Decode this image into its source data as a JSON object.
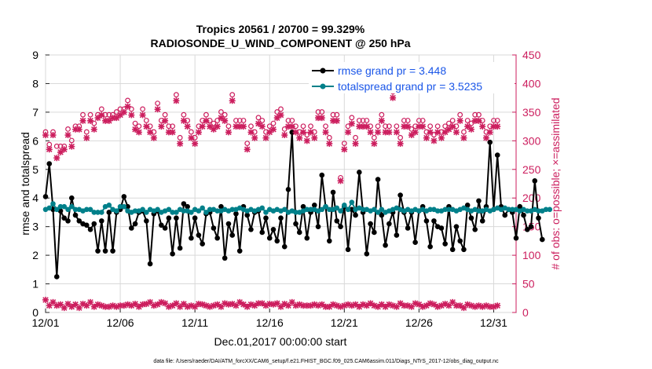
{
  "chart_data": {
    "type": "line",
    "title_line1": "Tropics 20561 / 20700 = 99.329%",
    "title_line2": "RADIOSONDE_U_WIND_COMPONENT @ 250 hPa",
    "xlabel": "Dec.01,2017 00:00:00 start",
    "ylabel_left": "rmse and totalspread",
    "ylabel_right": "# of obs: o=possible; ×=assimilated",
    "xlim": [
      0,
      31.5
    ],
    "ylim_left": [
      0,
      9
    ],
    "ylim_right": [
      0,
      450
    ],
    "x_ticks": [
      0,
      5,
      10,
      15,
      20,
      25,
      30
    ],
    "x_tick_labels": [
      "12/01",
      "12/06",
      "12/11",
      "12/16",
      "12/21",
      "12/26",
      "12/31"
    ],
    "y_ticks_left": [
      0,
      1,
      2,
      3,
      4,
      5,
      6,
      7,
      8,
      9
    ],
    "y_ticks_right": [
      0,
      50,
      100,
      150,
      200,
      250,
      300,
      350,
      400,
      450
    ],
    "legend": [
      {
        "label": "rmse grand pr = 3.448",
        "color": "#000000"
      },
      {
        "label": "totalspread grand pr = 3.5235",
        "color": "#00808a"
      }
    ],
    "series": [
      {
        "name": "rmse",
        "color": "#000000",
        "step": 0.25,
        "start": 0,
        "values": [
          4.05,
          5.2,
          3.6,
          1.25,
          3.55,
          3.3,
          3.2,
          4.0,
          3.4,
          3.2,
          3.1,
          3.05,
          2.9,
          3.1,
          2.15,
          3.2,
          2.15,
          3.5,
          2.15,
          3.5,
          3.6,
          4.05,
          3.7,
          2.95,
          3.1,
          3.5,
          3.55,
          3.2,
          1.7,
          3.45,
          3.55,
          3.05,
          2.95,
          3.3,
          2.05,
          3.3,
          2.25,
          3.8,
          3.7,
          2.6,
          3.3,
          2.7,
          2.4,
          3.45,
          3.5,
          2.95,
          2.6,
          3.7,
          1.9,
          3.1,
          2.7,
          3.45,
          2.15,
          3.7,
          3.4,
          2.9,
          3.5,
          3.55,
          2.8,
          3.3,
          2.6,
          2.9,
          2.5,
          3.3,
          2.3,
          4.3,
          6.3,
          3.1,
          2.8,
          3.7,
          2.6,
          3.5,
          3.75,
          3.0,
          4.8,
          3.7,
          2.5,
          4.2,
          3.2,
          3.0,
          3.7,
          2.2,
          3.6,
          3.4,
          4.9,
          3.5,
          2.05,
          3.1,
          2.8,
          4.65,
          3.4,
          2.35,
          3.1,
          3.5,
          2.7,
          4.1,
          3.5,
          2.95,
          3.5,
          2.45,
          3.55,
          3.7,
          3.2,
          2.3,
          3.2,
          3.0,
          2.95,
          2.4,
          3.7,
          2.2,
          3.0,
          2.5,
          2.2,
          3.75,
          3.3,
          2.9,
          3.9,
          3.2,
          3.7,
          5.95,
          3.6,
          5.5,
          3.7,
          3.4,
          3.6,
          3.5,
          2.6,
          3.7,
          3.4,
          2.9,
          3.0,
          4.6,
          3.3,
          2.55
        ]
      },
      {
        "name": "totalspread",
        "color": "#00808a",
        "step": 0.25,
        "start": 0,
        "values": [
          3.6,
          3.65,
          3.8,
          3.6,
          3.7,
          3.7,
          3.6,
          3.7,
          3.6,
          3.6,
          3.55,
          3.6,
          3.6,
          3.5,
          3.5,
          3.5,
          3.7,
          3.75,
          3.6,
          3.55,
          3.7,
          3.7,
          3.55,
          3.5,
          3.55,
          3.55,
          3.6,
          3.5,
          3.6,
          3.55,
          3.6,
          3.5,
          3.55,
          3.6,
          3.5,
          3.5,
          3.6,
          3.55,
          3.55,
          3.5,
          3.6,
          3.55,
          3.65,
          3.5,
          3.6,
          3.6,
          3.55,
          3.55,
          3.6,
          3.55,
          3.6,
          3.6,
          3.65,
          3.6,
          3.55,
          3.6,
          3.55,
          3.6,
          3.65,
          3.5,
          3.6,
          3.55,
          3.6,
          3.55,
          3.6,
          3.5,
          3.55,
          3.5,
          3.5,
          3.55,
          3.6,
          3.6,
          3.6,
          3.55,
          3.6,
          3.7,
          3.6,
          3.6,
          3.65,
          3.55,
          3.75,
          3.6,
          3.85,
          3.6,
          3.65,
          3.6,
          3.6,
          3.55,
          3.6,
          3.5,
          3.6,
          3.5,
          3.55,
          3.6,
          3.65,
          3.6,
          3.55,
          3.6,
          3.55,
          3.6,
          3.55,
          3.6,
          3.55,
          3.6,
          3.6,
          3.55,
          3.55,
          3.6,
          3.6,
          3.6,
          3.55,
          3.6,
          3.65,
          3.6,
          3.55,
          3.6,
          3.55,
          3.55,
          3.6,
          3.55,
          3.6,
          3.65,
          3.6,
          3.65,
          3.6,
          3.6,
          3.6,
          3.55,
          3.6,
          3.55,
          3.55,
          3.6,
          3.55,
          3.55,
          3.6,
          3.6
        ]
      },
      {
        "name": "obs_possible",
        "color": "#cc1e5e",
        "axis": "right",
        "marker": "circle",
        "step": 0.25,
        "start": 0,
        "values": [
          310,
          288,
          310,
          285,
          285,
          285,
          315,
          295,
          320,
          320,
          340,
          310,
          340,
          325,
          340,
          350,
          340,
          340,
          340,
          345,
          350,
          350,
          365,
          350,
          325,
          320,
          350,
          330,
          320,
          310,
          360,
          330,
          340,
          320,
          320,
          375,
          300,
          340,
          330,
          310,
          300,
          320,
          330,
          340,
          330,
          325,
          330,
          345,
          340,
          320,
          375,
          330,
          330,
          330,
          290,
          320,
          310,
          335,
          330,
          310,
          320,
          325,
          345,
          350,
          315,
          330,
          330,
          320,
          310,
          320,
          305,
          320,
          310,
          345,
          345,
          320,
          300,
          340,
          340,
          230,
          290,
          320,
          335,
          300,
          330,
          330,
          330,
          320,
          300,
          320,
          340,
          320,
          320,
          380,
          320,
          300,
          330,
          330,
          315,
          320,
          330,
          330,
          310,
          320,
          305,
          320,
          310,
          320,
          325,
          330,
          320,
          340,
          310,
          330,
          325,
          340,
          340,
          330,
          310,
          320,
          330,
          330
        ]
      },
      {
        "name": "obs_assimilated",
        "color": "#cc1e5e",
        "axis": "right",
        "marker": "cross",
        "step": 0.25,
        "start": 0,
        "values": [
          310,
          285,
          310,
          270,
          280,
          285,
          310,
          290,
          320,
          320,
          335,
          305,
          335,
          320,
          340,
          345,
          335,
          335,
          340,
          340,
          345,
          350,
          360,
          345,
          320,
          315,
          345,
          325,
          315,
          305,
          355,
          325,
          335,
          315,
          315,
          370,
          295,
          335,
          325,
          305,
          295,
          315,
          325,
          335,
          325,
          320,
          325,
          340,
          335,
          315,
          370,
          325,
          325,
          325,
          285,
          315,
          305,
          330,
          325,
          305,
          315,
          320,
          340,
          345,
          310,
          325,
          325,
          315,
          305,
          315,
          300,
          315,
          305,
          340,
          340,
          315,
          295,
          335,
          335,
          230,
          285,
          315,
          330,
          295,
          325,
          325,
          325,
          315,
          295,
          315,
          335,
          315,
          315,
          375,
          315,
          295,
          325,
          325,
          310,
          315,
          325,
          325,
          305,
          315,
          300,
          315,
          305,
          315,
          320,
          325,
          315,
          335,
          305,
          325,
          320,
          335,
          335,
          325,
          305,
          315,
          325,
          325
        ]
      },
      {
        "name": "obs_rejected",
        "color": "#cc1e5e",
        "axis": "right",
        "marker": "cross",
        "step": 0.25,
        "start": 0,
        "values": [
          22,
          12,
          18,
          12,
          14,
          8,
          15,
          10,
          14,
          8,
          15,
          12,
          18,
          10,
          14,
          12,
          10,
          10,
          12,
          10,
          12,
          12,
          14,
          12,
          15,
          10,
          14,
          15,
          18,
          12,
          14,
          18,
          16,
          10,
          12,
          16,
          10,
          15,
          10,
          12,
          10,
          15,
          14,
          12,
          10,
          12,
          14,
          10,
          16,
          14,
          15,
          12,
          18,
          14,
          10,
          14,
          12,
          16,
          16,
          12,
          15,
          14,
          16,
          10,
          15,
          12,
          18,
          12,
          14,
          12,
          12,
          12,
          14,
          12,
          14,
          10,
          10,
          14,
          12,
          10,
          12,
          14,
          12,
          14,
          10,
          14,
          12,
          16,
          12,
          10,
          14,
          10,
          14,
          12,
          10,
          16,
          12,
          12,
          10,
          16,
          14,
          10,
          12,
          16,
          14,
          10,
          12,
          15,
          12,
          18,
          12,
          12,
          8,
          14,
          12,
          10,
          12,
          10,
          12,
          10,
          10,
          12
        ]
      }
    ],
    "footnote": "data file: /Users/raeder/DAI/ATM_forcXX/CAM6_setup/f.e21.FHIST_BGC.f09_025.CAM6assim.011/Diags_NTrS_2017-12/obs_diag_output.nc"
  }
}
